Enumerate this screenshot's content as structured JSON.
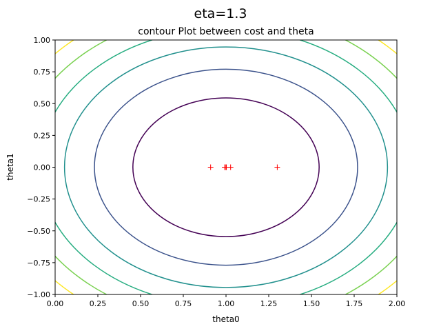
{
  "suptitle": "eta=1.3",
  "chart_data": {
    "type": "contour",
    "title": "contour Plot between cost and theta",
    "xlabel": "theta0",
    "ylabel": "theta1",
    "xlim": [
      0.0,
      2.0
    ],
    "ylim": [
      -1.0,
      1.0
    ],
    "xticks": [
      "0.00",
      "0.25",
      "0.50",
      "0.75",
      "1.00",
      "1.25",
      "1.50",
      "1.75",
      "2.00"
    ],
    "yticks": [
      "−1.00",
      "−0.75",
      "−0.50",
      "−0.25",
      "0.00",
      "0.25",
      "0.50",
      "0.75",
      "1.00"
    ],
    "grid": false,
    "colormap": "viridis",
    "center": [
      1.0,
      0.0
    ],
    "contours": [
      {
        "rx": 0.545,
        "ry": 0.545,
        "color": "#440154"
      },
      {
        "rx": 0.77,
        "ry": 0.77,
        "color": "#3b528b"
      },
      {
        "rx": 0.945,
        "ry": 0.945,
        "color": "#21908d"
      },
      {
        "rx": 1.09,
        "ry": 1.09,
        "color": "#27ad81"
      },
      {
        "rx": 1.22,
        "ry": 1.22,
        "color": "#7ad151"
      },
      {
        "rx": 1.34,
        "ry": 1.34,
        "color": "#fde725"
      }
    ],
    "points": [
      {
        "x": 1.3,
        "y": 0.0
      },
      {
        "x": 0.91,
        "y": 0.0
      },
      {
        "x": 1.027,
        "y": 0.0
      },
      {
        "x": 0.992,
        "y": 0.0
      },
      {
        "x": 1.002,
        "y": 0.0
      },
      {
        "x": 0.999,
        "y": 0.0
      },
      {
        "x": 1.0,
        "y": 0.0
      }
    ],
    "marker": "+",
    "marker_color": "#ff0000"
  }
}
